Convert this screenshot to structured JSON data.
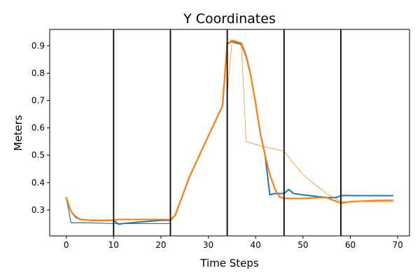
{
  "chart_data": {
    "type": "line",
    "title": "Y Coordinates",
    "xlabel": "Time Steps",
    "ylabel": "Meters",
    "xlim": [
      -3.5,
      72.5
    ],
    "ylim": [
      0.205,
      0.96
    ],
    "xticks": [
      0,
      10,
      20,
      30,
      40,
      50,
      60,
      70
    ],
    "yticks": [
      0.3,
      0.4,
      0.5,
      0.6,
      0.7,
      0.8,
      0.9
    ],
    "grid": false,
    "legend": "none",
    "vertical_lines": [
      10,
      22,
      34,
      46,
      58
    ],
    "vertical_line_color": "#000000",
    "series": [
      {
        "color": "#1f77b4",
        "width": 1.2,
        "x": [
          0,
          1,
          3,
          5,
          10,
          11,
          12,
          15,
          20,
          22
        ],
        "y": [
          0.345,
          0.253,
          0.253,
          0.253,
          0.25,
          0.25,
          0.25,
          0.25,
          0.25,
          0.25
        ]
      },
      {
        "color": "#1f77b4",
        "width": 2.0,
        "x": [
          0,
          1,
          2,
          3,
          5,
          10,
          11,
          12,
          15,
          20,
          22,
          23,
          26,
          30,
          33,
          34,
          35,
          36,
          37,
          38,
          39,
          40,
          41,
          42,
          43,
          44,
          46,
          47,
          48,
          50,
          55,
          57,
          58,
          59,
          60,
          65,
          69
        ],
        "y": [
          0.345,
          0.295,
          0.275,
          0.265,
          0.262,
          0.262,
          0.248,
          0.25,
          0.255,
          0.262,
          0.262,
          0.28,
          0.42,
          0.57,
          0.68,
          0.91,
          0.915,
          0.91,
          0.905,
          0.86,
          0.79,
          0.69,
          0.58,
          0.5,
          0.355,
          0.36,
          0.36,
          0.375,
          0.36,
          0.355,
          0.345,
          0.345,
          0.352,
          0.353,
          0.352,
          0.352,
          0.352
        ]
      },
      {
        "color": "#ff7f0e",
        "width": 0.7,
        "x": [
          34,
          35,
          36,
          37,
          38,
          40,
          42,
          46,
          48,
          50,
          52,
          55,
          58,
          60,
          65,
          69
        ],
        "y": [
          0.72,
          0.915,
          0.915,
          0.9,
          0.55,
          0.54,
          0.53,
          0.515,
          0.47,
          0.43,
          0.4,
          0.36,
          0.33,
          0.33,
          0.33,
          0.33
        ]
      },
      {
        "color": "#ff7f0e",
        "width": 2.2,
        "x": [
          0,
          1,
          2,
          3,
          5,
          10,
          11,
          15,
          20,
          22,
          23,
          26,
          30,
          33,
          34,
          35,
          36,
          37,
          38,
          39,
          40,
          41,
          42,
          43,
          44,
          45,
          46,
          47,
          48,
          50,
          52,
          55,
          58,
          59,
          60,
          65,
          69
        ],
        "y": [
          0.345,
          0.295,
          0.272,
          0.265,
          0.262,
          0.262,
          0.265,
          0.265,
          0.265,
          0.265,
          0.28,
          0.42,
          0.57,
          0.68,
          0.905,
          0.92,
          0.915,
          0.91,
          0.865,
          0.79,
          0.69,
          0.58,
          0.5,
          0.43,
          0.38,
          0.348,
          0.342,
          0.342,
          0.342,
          0.342,
          0.344,
          0.345,
          0.325,
          0.327,
          0.33,
          0.334,
          0.335
        ]
      }
    ]
  }
}
